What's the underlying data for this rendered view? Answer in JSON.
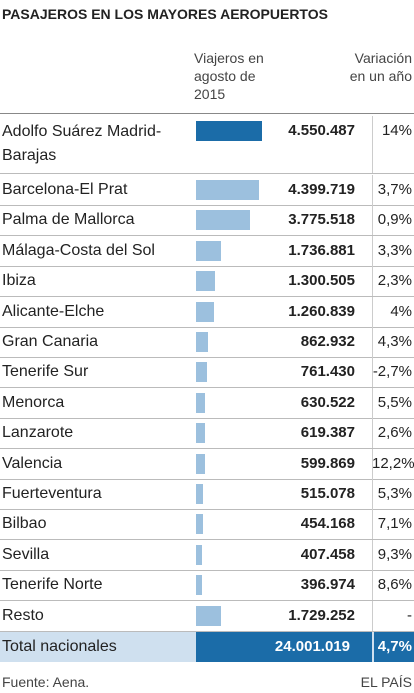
{
  "chart_data": {
    "type": "bar",
    "title": "PASAJEROS EN LOS MAYORES AEROPUERTOS",
    "value_header": "Viajeros en agosto de 2015",
    "variation_header": "Variación en un año",
    "categories": [
      "Adolfo Suárez Madrid-Barajas",
      "Barcelona-El Prat",
      "Palma de Mallorca",
      "Málaga-Costa del Sol",
      "Ibiza",
      "Alicante-Elche",
      "Gran Canaria",
      "Tenerife Sur",
      "Menorca",
      "Lanzarote",
      "Valencia",
      "Fuerteventura",
      "Bilbao",
      "Sevilla",
      "Tenerife Norte",
      "Resto"
    ],
    "values": [
      4550487,
      4399719,
      3775518,
      1736881,
      1300505,
      1260839,
      862932,
      761430,
      630522,
      619387,
      599869,
      515078,
      454168,
      407458,
      396974,
      1729252
    ],
    "value_labels": [
      "4.550.487",
      "4.399.719",
      "3.775.518",
      "1.736.881",
      "1.300.505",
      "1.260.839",
      "862.932",
      "761.430",
      "630.522",
      "619.387",
      "599.869",
      "515.078",
      "454.168",
      "407.458",
      "396.974",
      "1.729.252"
    ],
    "variations": [
      14,
      3.7,
      0.9,
      3.3,
      2.3,
      4,
      4.3,
      -2.7,
      5.5,
      2.6,
      12.2,
      5.3,
      7.1,
      9.3,
      8.6,
      null
    ],
    "variation_labels": [
      "14%",
      "3,7%",
      "0,9%",
      "3,3%",
      "2,3%",
      "4%",
      "4,3%",
      "-2,7%",
      "5,5%",
      "2,6%",
      "12,2%",
      "5,3%",
      "7,1%",
      "9,3%",
      "8,6%",
      "-"
    ],
    "colors": [
      "#1b6ca8",
      "#9cc0de",
      "#9cc0de",
      "#9cc0de",
      "#9cc0de",
      "#9cc0de",
      "#9cc0de",
      "#9cc0de",
      "#9cc0de",
      "#9cc0de",
      "#9cc0de",
      "#9cc0de",
      "#9cc0de",
      "#9cc0de",
      "#9cc0de",
      "#9cc0de"
    ],
    "xlim": [
      0,
      5000000
    ],
    "total": {
      "label": "Total nacionales",
      "value": 24001019,
      "value_label": "24.001.019",
      "variation": 4.7,
      "variation_label": "4,7%"
    },
    "source": "Fuente: Aena.",
    "credit": "EL PAÍS"
  }
}
